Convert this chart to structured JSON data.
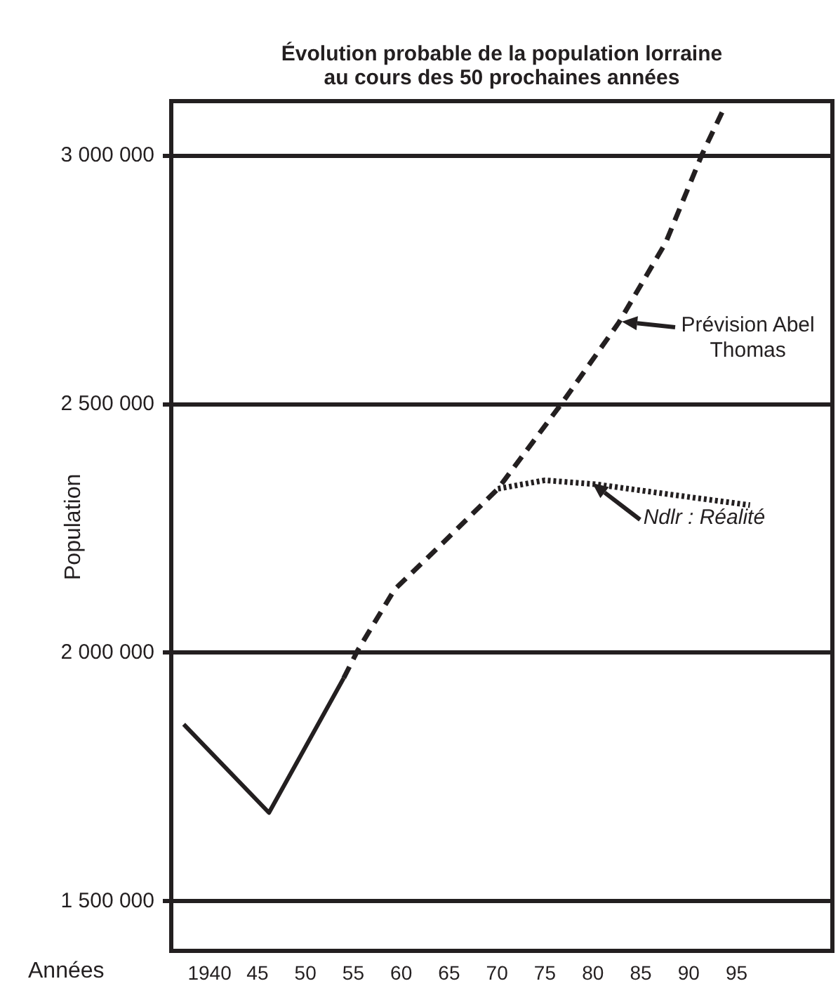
{
  "chart_data": {
    "type": "line",
    "title": "Évolution probable de la population lorraine au cours des 50 prochaines années",
    "xlabel": "Années",
    "ylabel": "Population",
    "xlim": [
      1936,
      2005
    ],
    "ylim": [
      1400000,
      3110000
    ],
    "xticks": [
      {
        "value": 1940,
        "label": "1940"
      },
      {
        "value": 1945,
        "label": "45"
      },
      {
        "value": 1950,
        "label": "50"
      },
      {
        "value": 1955,
        "label": "55"
      },
      {
        "value": 1960,
        "label": "60"
      },
      {
        "value": 1965,
        "label": "65"
      },
      {
        "value": 1970,
        "label": "70"
      },
      {
        "value": 1975,
        "label": "75"
      },
      {
        "value": 1980,
        "label": "80"
      },
      {
        "value": 1985,
        "label": "85"
      },
      {
        "value": 1990,
        "label": "90"
      },
      {
        "value": 1995,
        "label": "95"
      }
    ],
    "yticks": [
      {
        "value": 1500000,
        "label": "1 500 000"
      },
      {
        "value": 2000000,
        "label": "2 000 000"
      },
      {
        "value": 2500000,
        "label": "2 500 000"
      },
      {
        "value": 3000000,
        "label": "3 000 000"
      }
    ],
    "grid": "y",
    "legend": false,
    "series": [
      {
        "color": "#231f20",
        "line_style": "solid",
        "x": [
          1937.3,
          1946.2,
          1954
        ],
        "values": [
          1856000,
          1678000,
          1949000
        ]
      },
      {
        "color": "#231f20",
        "line_style": "dashed",
        "x": [
          1954,
          1955.5,
          1959.3,
          1964.3,
          1970.1,
          1976.8,
          1982.7,
          1987.6,
          1991.4,
          1993.5
        ],
        "values": [
          1949000,
          2006000,
          2127000,
          2220000,
          2330000,
          2503000,
          2664000,
          2825000,
          3003000,
          3088000
        ]
      },
      {
        "color": "#231f20",
        "line_style": "dotted",
        "x": [
          1970.1,
          1975,
          1980.3,
          1989,
          1996.4
        ],
        "values": [
          2330000,
          2347000,
          2339000,
          2316000,
          2297000
        ]
      }
    ],
    "annotations": [
      {
        "text": "Prévision Abel Thomas",
        "x": 1983,
        "y": 2665000
      },
      {
        "text": "Ndlr : Réalité",
        "x": 1980,
        "y": 2340000
      }
    ]
  }
}
